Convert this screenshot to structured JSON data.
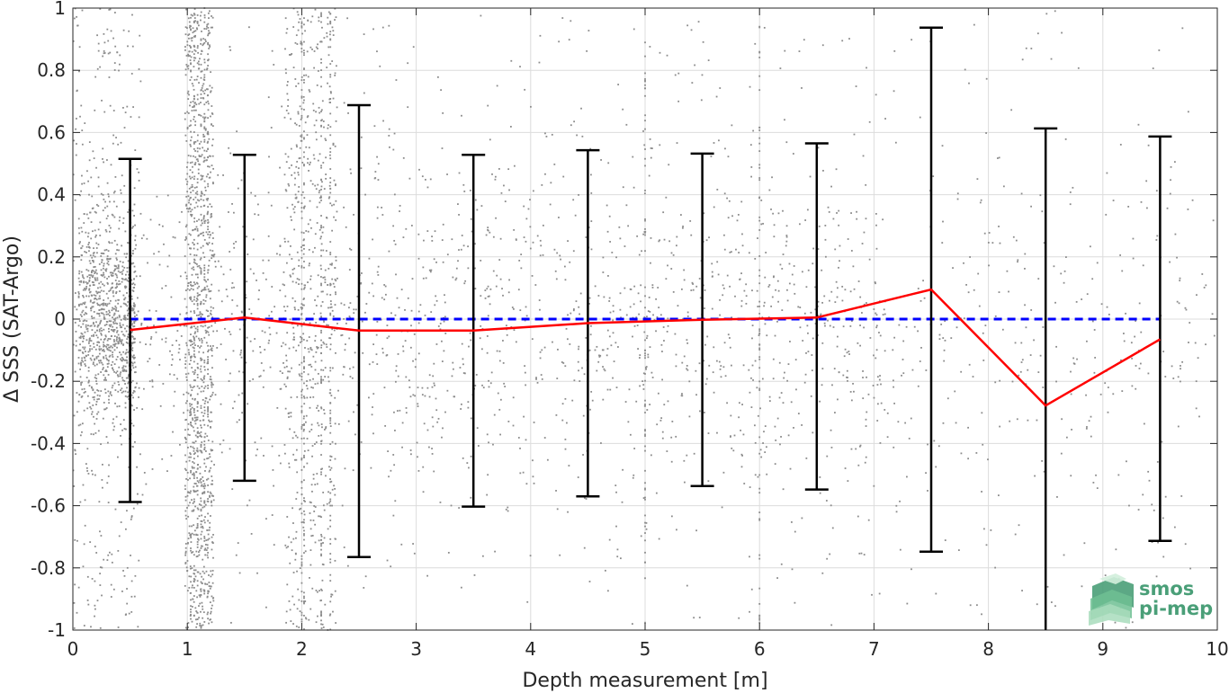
{
  "chart_data": {
    "type": "line",
    "xlabel": "Depth measurement [m]",
    "ylabel": "Δ SSS (SAT-Argo)",
    "xlim": [
      0,
      10
    ],
    "ylim": [
      -1,
      1
    ],
    "xticks": [
      0,
      1,
      2,
      3,
      4,
      5,
      6,
      7,
      8,
      9,
      10
    ],
    "xtick_labels": [
      "0",
      "1",
      "2",
      "3",
      "4",
      "5",
      "6",
      "7",
      "8",
      "9",
      "10"
    ],
    "yticks": [
      -1,
      -0.8,
      -0.6,
      -0.4,
      -0.2,
      0,
      0.2,
      0.4,
      0.6,
      0.8,
      1
    ],
    "ytick_labels": [
      "-1",
      "-0.8",
      "-0.6",
      "-0.4",
      "-0.2",
      "0",
      "0.2",
      "0.4",
      "0.6",
      "0.8",
      "1"
    ],
    "grid": true,
    "x": [
      0.5,
      1.5,
      2.5,
      3.5,
      4.5,
      5.5,
      6.5,
      7.5,
      8.5,
      9.5
    ],
    "series": [
      {
        "kind": "mean-line",
        "color": "#ff0000",
        "values": [
          -0.035,
          0.005,
          -0.037,
          -0.037,
          -0.013,
          -0.002,
          0.005,
          0.095,
          -0.278,
          -0.065
        ]
      },
      {
        "kind": "error-bars",
        "color": "#000000",
        "upper": [
          0.515,
          0.528,
          0.688,
          0.528,
          0.543,
          0.532,
          0.565,
          0.937,
          0.613,
          0.587
        ],
        "lower": [
          -0.588,
          -0.52,
          -0.765,
          -0.603,
          -0.57,
          -0.537,
          -0.548,
          -0.748,
          -1.0,
          -0.713
        ]
      },
      {
        "kind": "zero-reference",
        "color": "#0000ff",
        "style": "dashed",
        "x": [
          0.5,
          9.5
        ],
        "values": [
          0,
          0
        ]
      },
      {
        "kind": "scatter-background",
        "color": "#808080",
        "description_values": "dense individual matchup points, heavily concentrated near x=0-0.5, 1.0-1.2, 1.9-2.3, with vertical streaks at x=1.05, 1.1, 2.0, 2.2, 5.0, 6.0"
      }
    ]
  },
  "logo": {
    "line1": "smos",
    "line2": "pi-mep",
    "colors": [
      "#4a9f78",
      "#6fc093",
      "#a8dcbc",
      "#d2eedc"
    ]
  }
}
